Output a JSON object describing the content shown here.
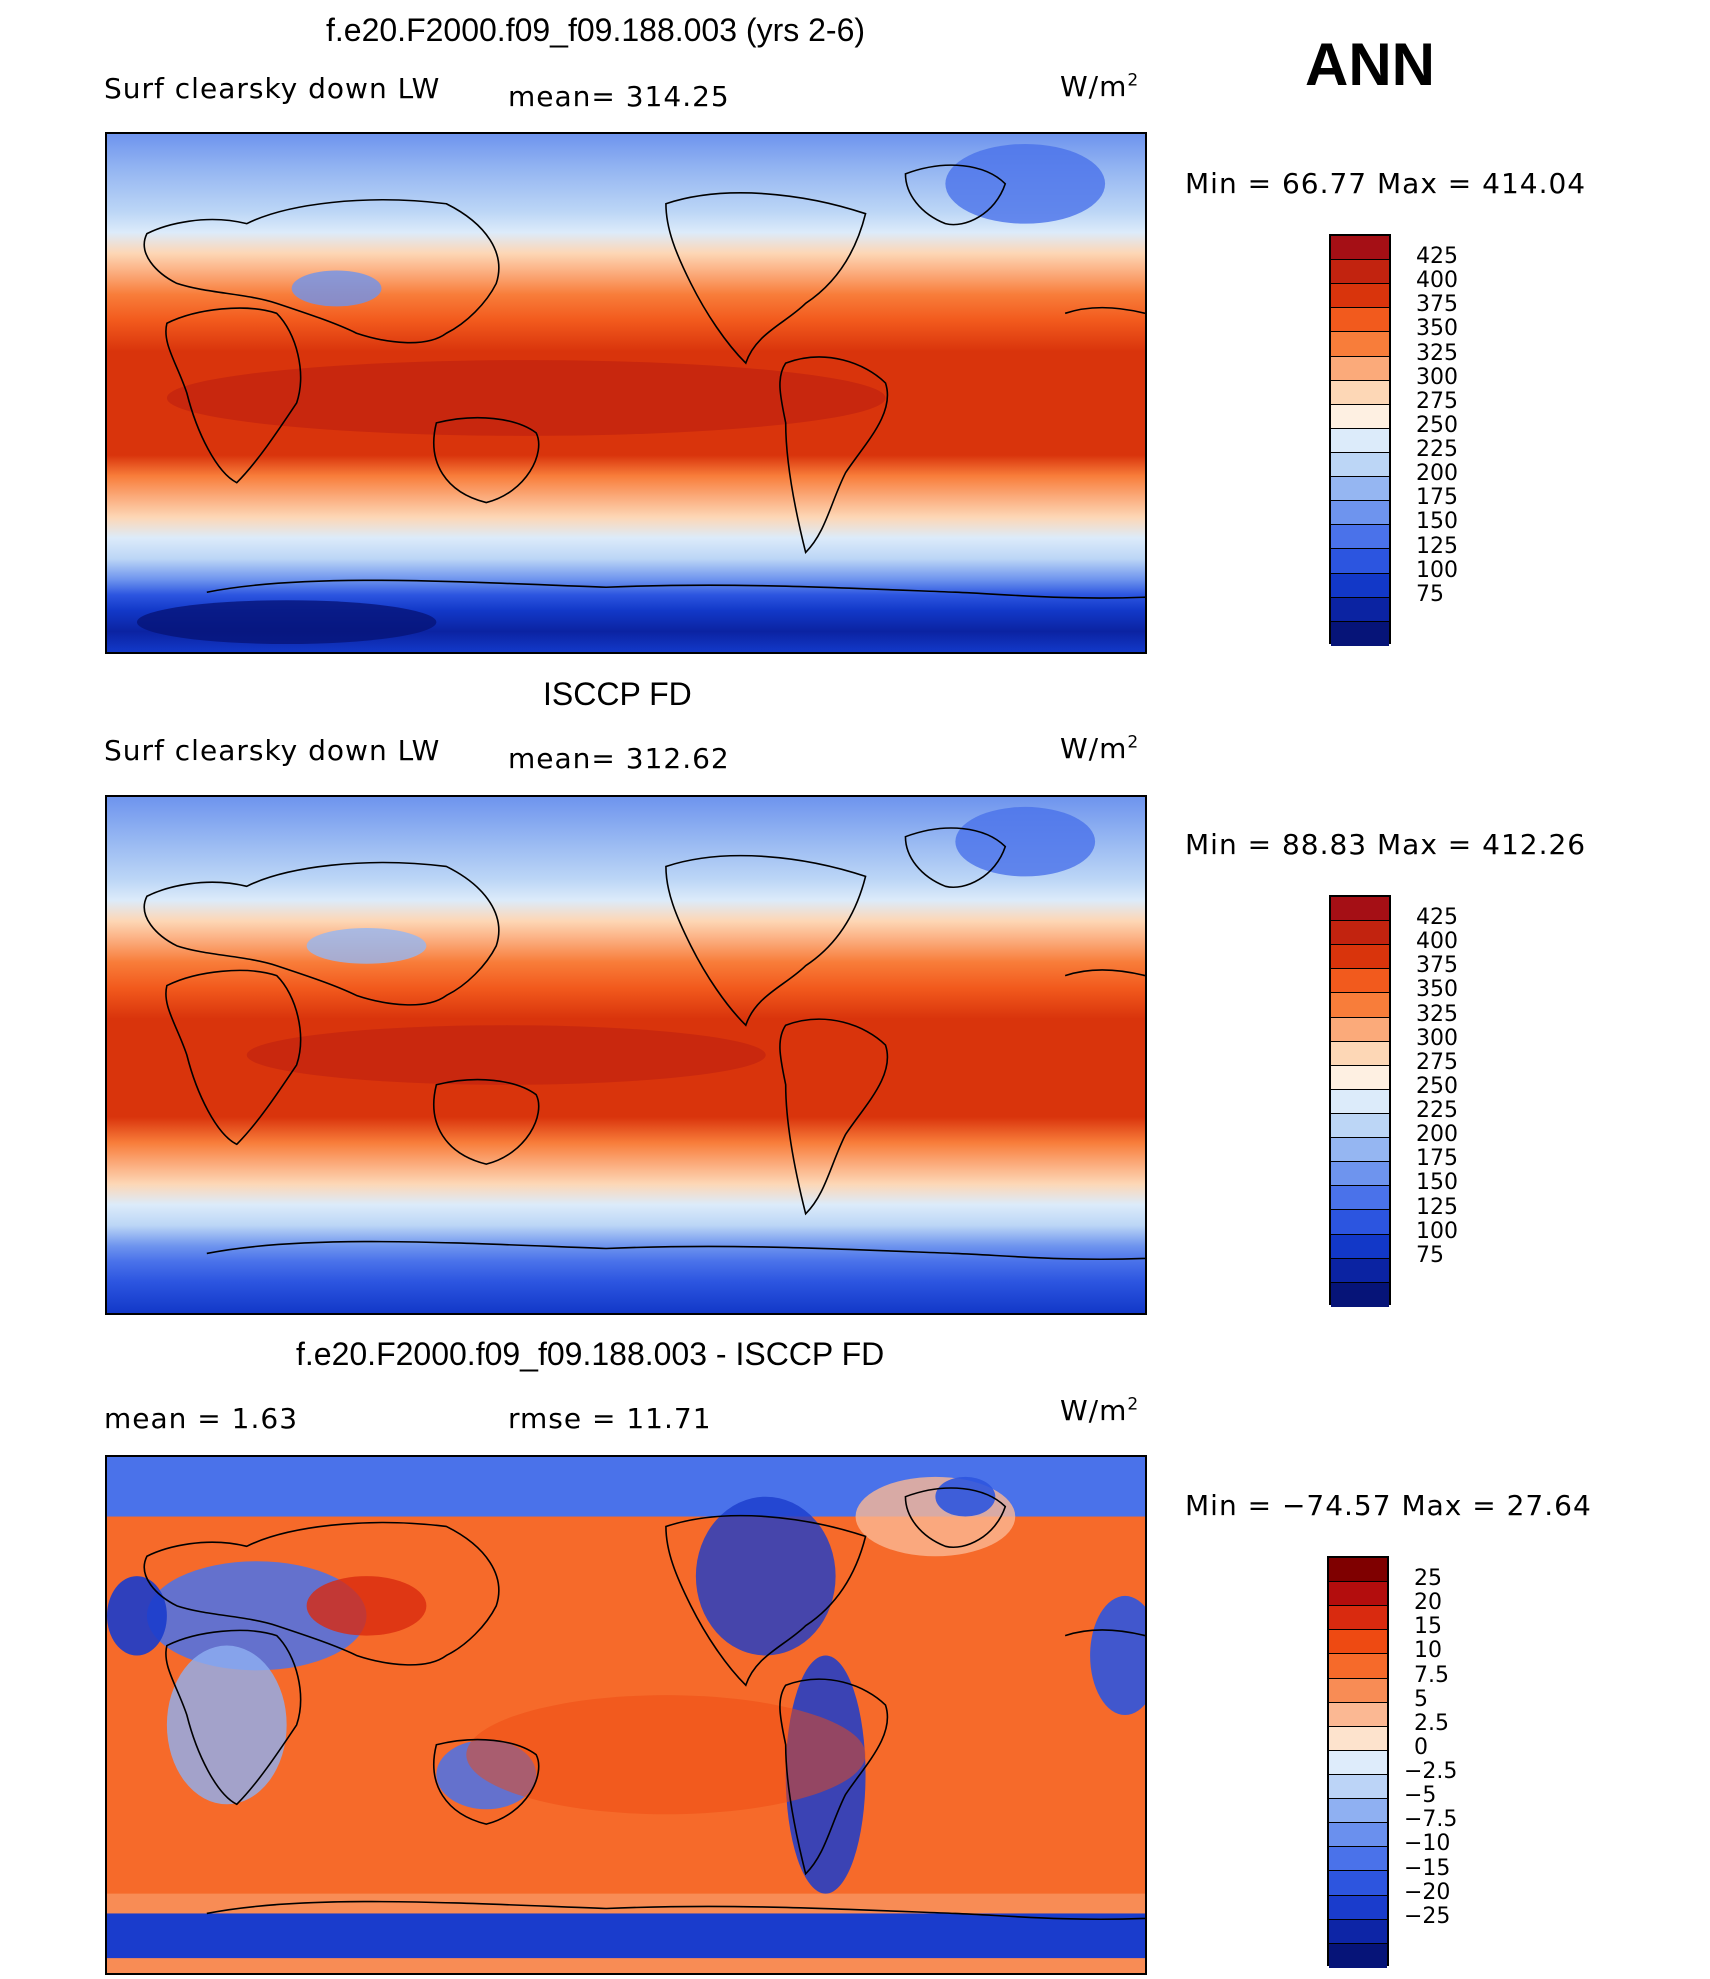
{
  "header": {
    "season": "ANN"
  },
  "colorbar_colors": {
    "abs": [
      "#a50f15",
      "#c2230f",
      "#d9340c",
      "#f25a1d",
      "#f87d3a",
      "#fbaa7a",
      "#fdd7b6",
      "#fef0e2",
      "#dcebfa",
      "#bcd6f6",
      "#95b6f2",
      "#6e94ee",
      "#4a72ea",
      "#2c55e0",
      "#1238c8",
      "#0b23a2",
      "#061478"
    ],
    "diff": [
      "#7f0000",
      "#b30d0d",
      "#d92a0f",
      "#ee4a12",
      "#f66a2a",
      "#f88c55",
      "#fbb893",
      "#fde3cd",
      "#deecfb",
      "#bcd4f7",
      "#8fb0f2",
      "#6a90ee",
      "#4a72ea",
      "#2d55df",
      "#1a3ccc",
      "#0d25a6",
      "#061478"
    ]
  },
  "panels": [
    {
      "id": "model",
      "title": "f.e20.F2000.f09_f09.188.003 (yrs 2-6)",
      "left_label": "Surf clearsky down LW",
      "stat_text": "mean= 314.25",
      "units": "W/m",
      "units_sup": "2",
      "minmax": "Min =   66.77  Max  =  414.04",
      "palette": "abs",
      "ticks": [
        "425",
        "400",
        "375",
        "350",
        "325",
        "300",
        "275",
        "250",
        "225",
        "200",
        "175",
        "150",
        "125",
        "100",
        "75"
      ]
    },
    {
      "id": "obs",
      "title": "ISCCP FD",
      "left_label": "Surf clearsky down LW",
      "stat_text": "mean= 312.62",
      "units": "W/m",
      "units_sup": "2",
      "minmax": "Min =   88.83  Max  =  412.26",
      "palette": "abs",
      "ticks": [
        "425",
        "400",
        "375",
        "350",
        "325",
        "300",
        "275",
        "250",
        "225",
        "200",
        "175",
        "150",
        "125",
        "100",
        "75"
      ]
    },
    {
      "id": "diff",
      "title": "f.e20.F2000.f09_f09.188.003 - ISCCP FD",
      "left_label": "mean  =      1.63",
      "stat_text": "rmse  =     11.71",
      "units": "W/m",
      "units_sup": "2",
      "minmax": "Min  = −74.57  Max  =    27.64",
      "palette": "diff",
      "ticks": [
        "25",
        "20",
        "15",
        "10",
        "7.5",
        "5",
        "2.5",
        "0",
        "−2.5",
        "−5",
        "−7.5",
        "−10",
        "−15",
        "−20",
        "−25"
      ]
    }
  ]
}
